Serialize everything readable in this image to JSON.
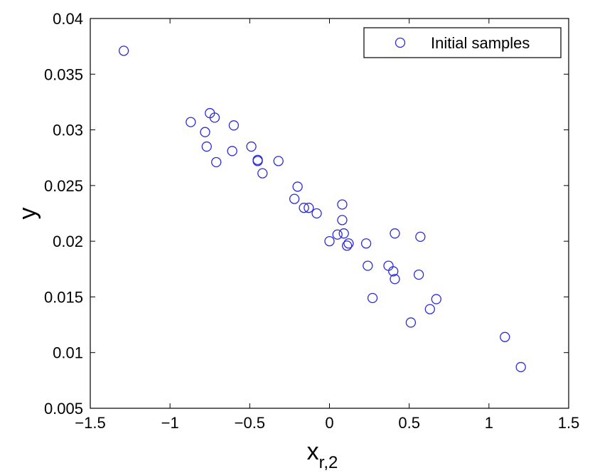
{
  "chart_data": {
    "type": "scatter",
    "xlabel": "x",
    "xlabel_subscript": "r,2",
    "ylabel": "y",
    "xlim": [
      -1.5,
      1.5
    ],
    "ylim": [
      0.005,
      0.04
    ],
    "x_ticks": [
      -1.5,
      -1,
      -0.5,
      0,
      0.5,
      1,
      1.5
    ],
    "x_tick_labels": [
      "−1.5",
      "−1",
      "−0.5",
      "0",
      "0.5",
      "1",
      "1.5"
    ],
    "y_ticks": [
      0.005,
      0.01,
      0.015,
      0.02,
      0.025,
      0.03,
      0.035,
      0.04
    ],
    "y_tick_labels": [
      "0.005",
      "0.01",
      "0.015",
      "0.02",
      "0.025",
      "0.03",
      "0.035",
      "0.04"
    ],
    "grid": false,
    "legend_position": "top-right",
    "marker": "open-circle",
    "series": [
      {
        "name": "Initial samples",
        "color": "#2b2bd9",
        "points": [
          [
            -1.29,
            0.0371
          ],
          [
            -0.87,
            0.0307
          ],
          [
            -0.75,
            0.0315
          ],
          [
            -0.72,
            0.0311
          ],
          [
            -0.78,
            0.0298
          ],
          [
            -0.77,
            0.0285
          ],
          [
            -0.71,
            0.0271
          ],
          [
            -0.6,
            0.0304
          ],
          [
            -0.61,
            0.0281
          ],
          [
            -0.49,
            0.0285
          ],
          [
            -0.45,
            0.0273
          ],
          [
            -0.45,
            0.0272
          ],
          [
            -0.42,
            0.0261
          ],
          [
            -0.32,
            0.0272
          ],
          [
            -0.2,
            0.0249
          ],
          [
            -0.22,
            0.0238
          ],
          [
            -0.16,
            0.023
          ],
          [
            -0.13,
            0.023
          ],
          [
            -0.08,
            0.0225
          ],
          [
            0.0,
            0.02
          ],
          [
            0.05,
            0.0206
          ],
          [
            0.08,
            0.0233
          ],
          [
            0.08,
            0.0219
          ],
          [
            0.09,
            0.0207
          ],
          [
            0.11,
            0.0196
          ],
          [
            0.12,
            0.0198
          ],
          [
            0.23,
            0.0198
          ],
          [
            0.24,
            0.0178
          ],
          [
            0.27,
            0.0149
          ],
          [
            0.37,
            0.0178
          ],
          [
            0.4,
            0.0173
          ],
          [
            0.41,
            0.0207
          ],
          [
            0.41,
            0.0166
          ],
          [
            0.51,
            0.0127
          ],
          [
            0.56,
            0.017
          ],
          [
            0.57,
            0.0204
          ],
          [
            0.63,
            0.0139
          ],
          [
            0.67,
            0.0148
          ],
          [
            1.1,
            0.0114
          ],
          [
            1.2,
            0.0087
          ]
        ]
      }
    ]
  }
}
